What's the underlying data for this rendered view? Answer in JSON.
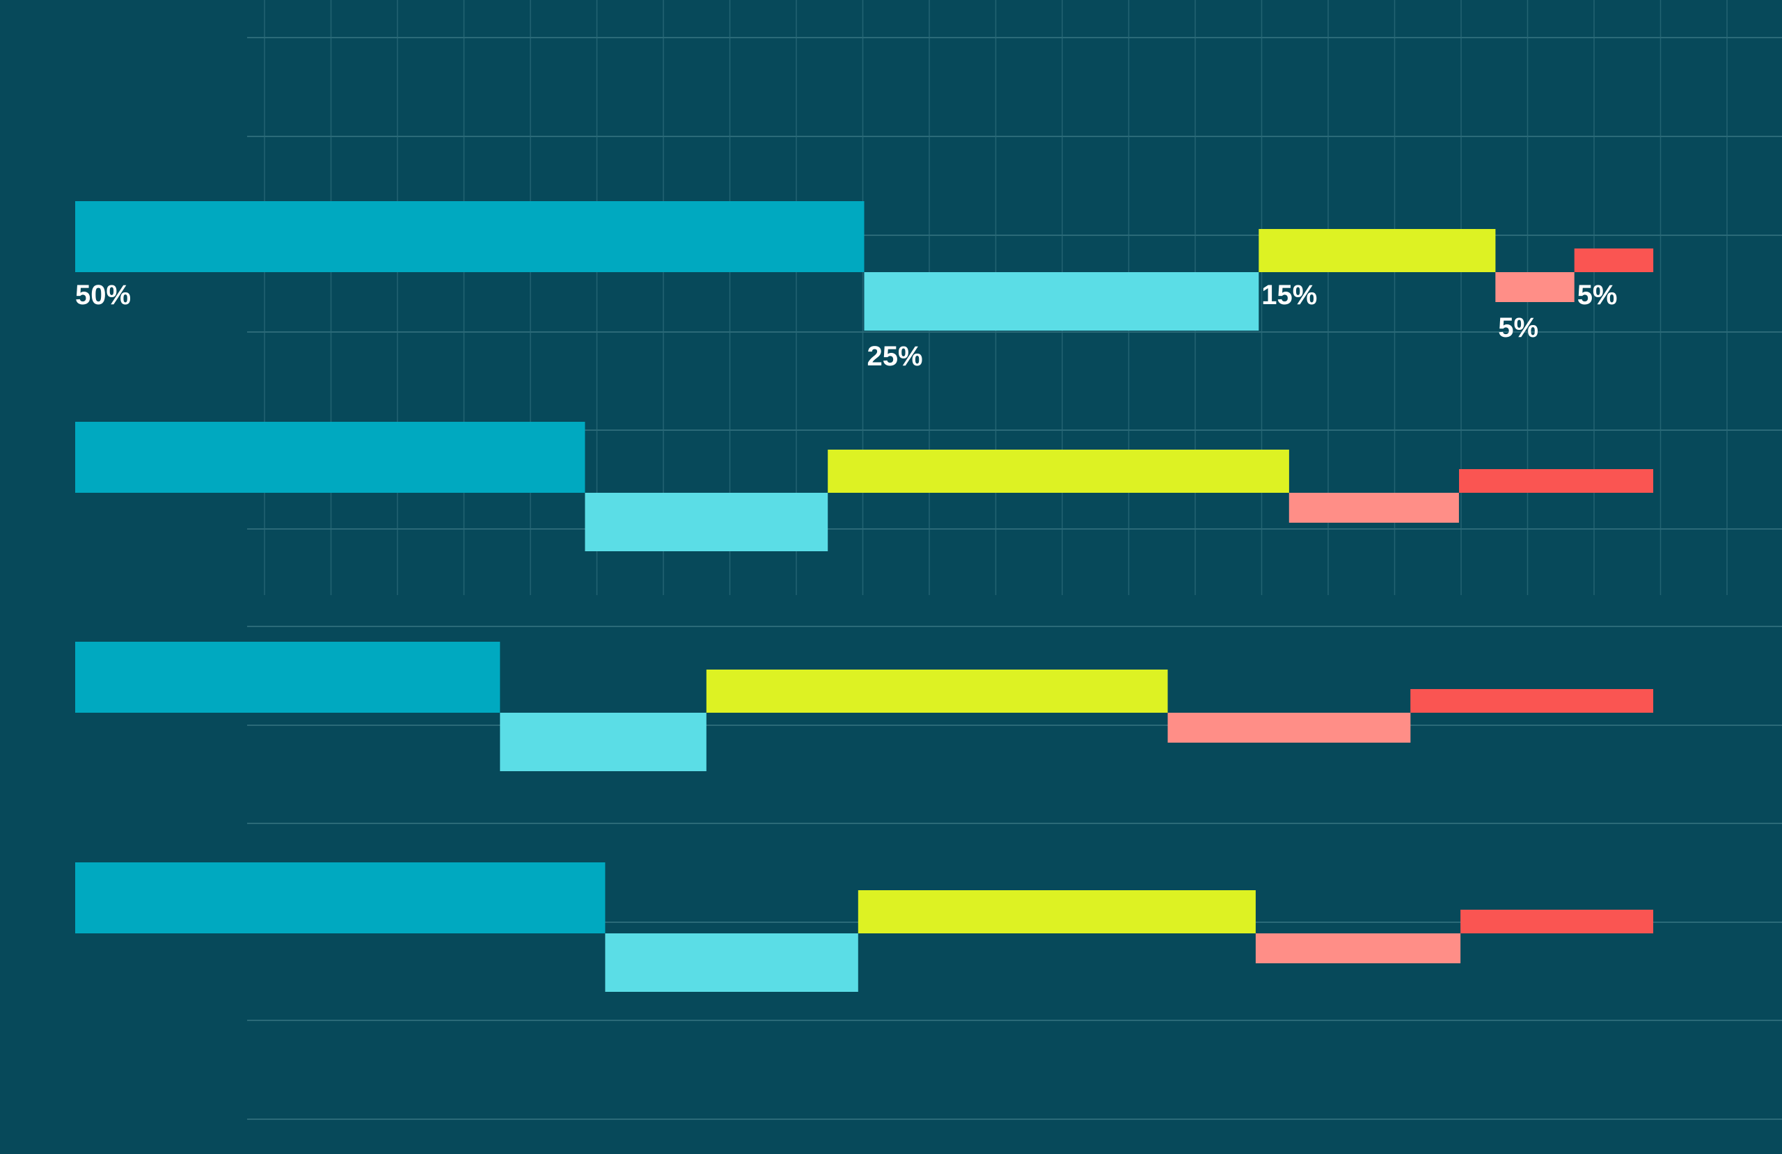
{
  "chart_data": {
    "type": "bar",
    "subtype": "stacked-horizontal-staggered",
    "title": "",
    "xlabel": "",
    "ylabel": "",
    "xlim": [
      0,
      100
    ],
    "grid": true,
    "legend": "none",
    "colors": {
      "background": "#07495a",
      "grid": "#2b6a78",
      "segments": [
        "#00a9c0",
        "#5bdde6",
        "#ddf223",
        "#ff8e87",
        "#fa5552"
      ],
      "label": "#ffffff"
    },
    "series": [
      {
        "values": [
          50,
          25,
          15,
          5,
          5
        ],
        "labels": [
          "50%",
          "25%",
          "15%",
          "5%",
          "5%"
        ]
      },
      {
        "values": [
          42,
          20,
          38,
          14,
          16
        ],
        "labels": []
      },
      {
        "values": [
          35,
          17,
          38,
          20,
          20
        ],
        "labels": []
      },
      {
        "values": [
          44,
          21,
          33,
          17,
          16
        ],
        "labels": []
      }
    ]
  }
}
